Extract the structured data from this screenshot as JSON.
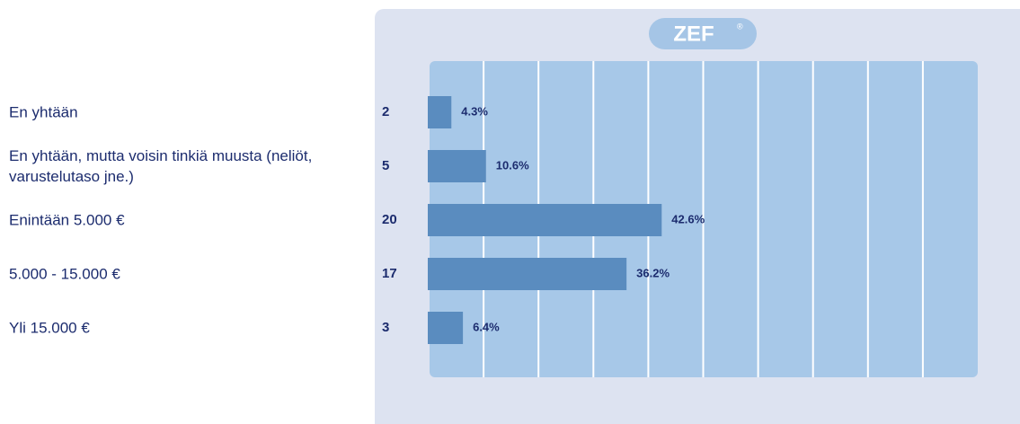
{
  "chart_data": {
    "type": "bar",
    "orientation": "horizontal",
    "logo": "ZEF",
    "logo_mark": "®",
    "categories": [
      "En yhtään",
      "En yhtään, mutta voisin tinkiä muusta (neliöt, varustelutaso jne.)",
      "Enintään 5.000 €",
      "5.000 - 15.000 €",
      "Yli 15.000 €"
    ],
    "counts": [
      2,
      5,
      20,
      17,
      3
    ],
    "values": [
      4.3,
      10.6,
      42.6,
      36.2,
      6.4
    ],
    "value_labels": [
      "4.3%",
      "10.6%",
      "42.6%",
      "36.2%",
      "6.4%"
    ],
    "color": "#5a8cbf",
    "xlim": [
      0,
      100
    ],
    "xticks": [
      0,
      10,
      20,
      30,
      40,
      50,
      60,
      70,
      80,
      90,
      100
    ],
    "grid": true
  }
}
